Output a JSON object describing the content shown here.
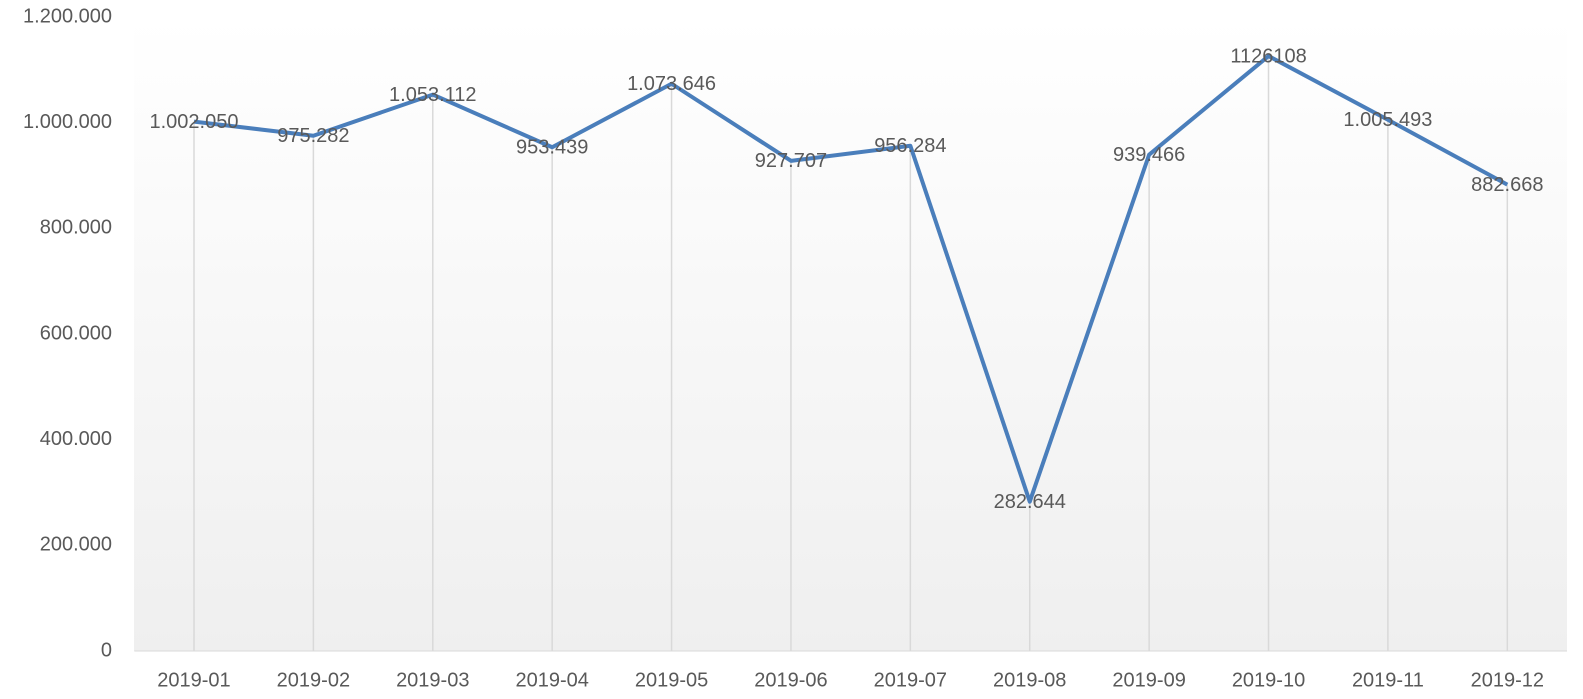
{
  "chart_data": {
    "type": "line",
    "categories": [
      "2019-01",
      "2019-02",
      "2019-03",
      "2019-04",
      "2019-05",
      "2019-06",
      "2019-07",
      "2019-08",
      "2019-09",
      "2019-10",
      "2019-11",
      "2019-12"
    ],
    "series": [
      {
        "color": "#4a7ebb",
        "values": [
          1002050,
          975282,
          1053112,
          953439,
          1073646,
          927707,
          956284,
          282644,
          939466,
          1126108,
          1005493,
          882668
        ],
        "value_labels": [
          "1.002.050",
          "975.282",
          "1.053.112",
          "953.439",
          "1.073.646",
          "927.707",
          "956.284",
          "282.644",
          "939.466",
          "1126108",
          "1.005.493",
          "882.668"
        ]
      }
    ],
    "ylim": [
      0,
      1200000
    ],
    "yticks": [
      0,
      {
        "value": 200000,
        "label": "200.000"
      },
      {
        "value": 400000,
        "label": "400.000"
      },
      {
        "value": 600000,
        "label": "600.000"
      },
      {
        "value": 800000,
        "label": "800.000"
      },
      {
        "value": 1000000,
        "label": "1.000.000"
      },
      {
        "value": 1200000,
        "label": "1.200.000"
      }
    ],
    "drop_lines": true
  }
}
